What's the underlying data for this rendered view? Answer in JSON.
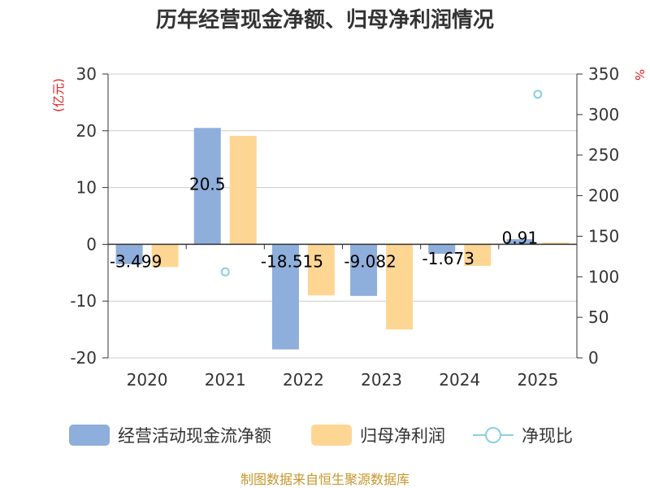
{
  "chart_data": {
    "type": "bar",
    "title": "历年经营现金净额、归母净利润情况",
    "categories": [
      "2020",
      "2021",
      "2022",
      "2023",
      "2024",
      "2025"
    ],
    "series": [
      {
        "name": "经营活动现金流净额",
        "axis": "left",
        "kind": "bar",
        "color": "#8eaedb",
        "values": [
          -3.499,
          20.5,
          -18.515,
          -9.082,
          -1.673,
          0.91
        ],
        "labels": [
          "-3.499",
          "20.5",
          "-18.515",
          "-9.082",
          "-1.673",
          "0.91"
        ]
      },
      {
        "name": "归母净利润",
        "axis": "left",
        "kind": "bar",
        "color": "#fed694",
        "values": [
          -4.0,
          19.1,
          -9.0,
          -15.0,
          -3.8,
          0.3
        ]
      },
      {
        "name": "净现比",
        "axis": "right",
        "kind": "scatter",
        "color": "#8acfe0",
        "values": [
          null,
          106,
          null,
          null,
          null,
          325
        ]
      }
    ],
    "y_left": {
      "unit": "(亿元)",
      "min": -20,
      "max": 30,
      "ticks": [
        "30",
        "20",
        "10",
        "0",
        "-10",
        "-20"
      ],
      "tick_values": [
        30,
        20,
        10,
        0,
        -10,
        -20
      ]
    },
    "y_right": {
      "unit": "%",
      "min": 0,
      "max": 350,
      "ticks": [
        "350",
        "300",
        "250",
        "200",
        "150",
        "100",
        "50",
        "0"
      ],
      "tick_values": [
        350,
        300,
        250,
        200,
        150,
        100,
        50,
        0
      ]
    },
    "grid": true,
    "legend_position": "bottom",
    "source": "制图数据来自恒生聚源数据库",
    "unit_color": "#e02020",
    "source_color": "#c8962c"
  }
}
